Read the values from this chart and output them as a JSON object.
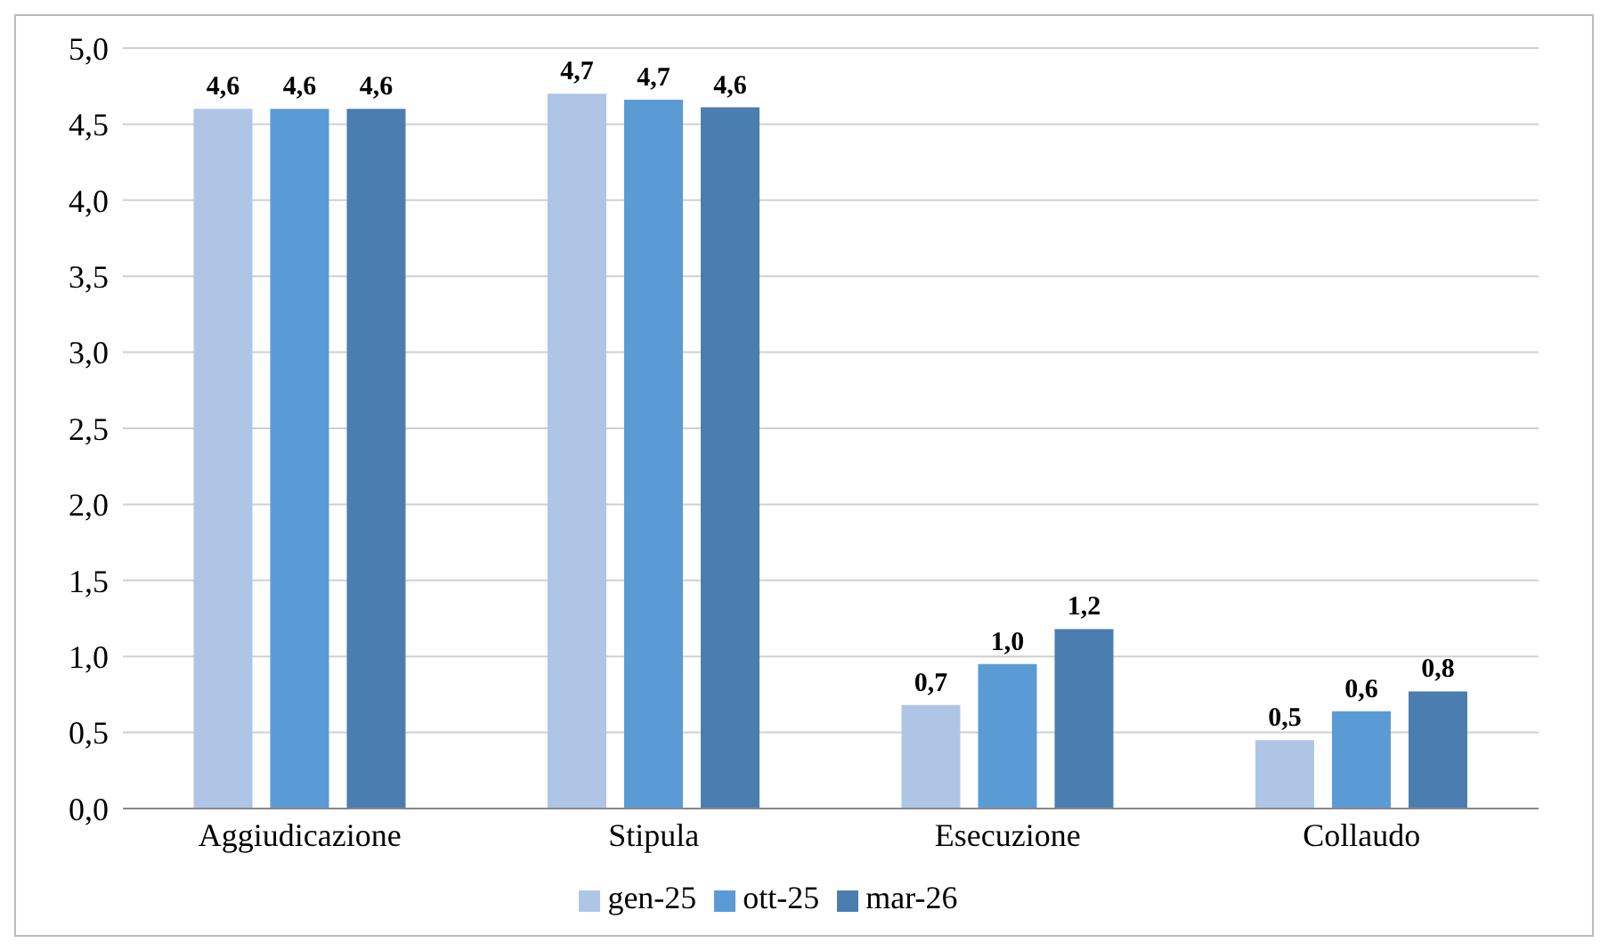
{
  "chart_data": {
    "type": "bar",
    "categories": [
      "Aggiudicazione",
      "Stipula",
      "Esecuzione",
      "Collaudo"
    ],
    "series": [
      {
        "name": "gen-25",
        "color": "#aec5e6",
        "values": [
          4.6,
          4.7,
          0.68,
          0.45
        ],
        "value_labels": [
          "4,6",
          "4,7",
          "0,7",
          "0,5"
        ]
      },
      {
        "name": "ott-25",
        "color": "#5b9bd5",
        "values": [
          4.6,
          4.66,
          0.95,
          0.64
        ],
        "value_labels": [
          "4,6",
          "4,7",
          "1,0",
          "0,6"
        ]
      },
      {
        "name": "mar-26",
        "color": "#4a7eb0",
        "values": [
          4.6,
          4.61,
          1.18,
          0.77
        ],
        "value_labels": [
          "4,6",
          "4,6",
          "1,2",
          "0,8"
        ]
      }
    ],
    "ylim": [
      0,
      5
    ],
    "yticks": [
      {
        "value": 0,
        "label": "0,0"
      },
      {
        "value": 0.5,
        "label": "0,5"
      },
      {
        "value": 1,
        "label": "1,0"
      },
      {
        "value": 1.5,
        "label": "1,5"
      },
      {
        "value": 2,
        "label": "2,0"
      },
      {
        "value": 2.5,
        "label": "2,5"
      },
      {
        "value": 3,
        "label": "3,0"
      },
      {
        "value": 3.5,
        "label": "3,5"
      },
      {
        "value": 4,
        "label": "4,0"
      },
      {
        "value": 4.5,
        "label": "4,5"
      },
      {
        "value": 5,
        "label": "5,0"
      }
    ],
    "grid": "y",
    "legend": "bottom"
  }
}
